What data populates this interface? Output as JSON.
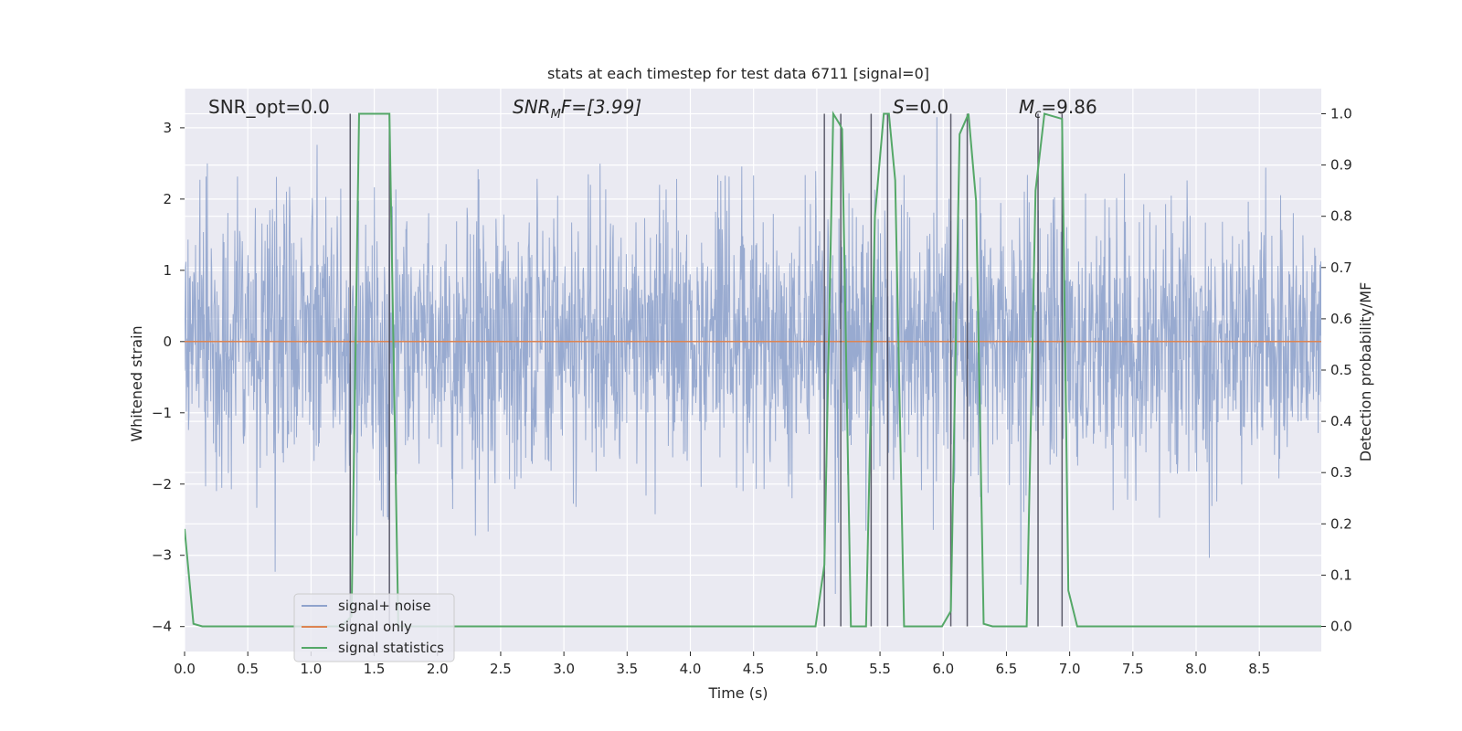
{
  "chart_data": {
    "type": "line",
    "title": "stats at each timestep for test data 6711 [signal=0]",
    "xlabel": "Time (s)",
    "ylabel_left": "Whitened strain",
    "ylabel_right": "Detection probability/MF",
    "xlim": [
      0.0,
      8.99
    ],
    "ylim_left": [
      -4.35,
      3.55
    ],
    "ylim_right": [
      -0.049,
      1.049
    ],
    "x_ticks": [
      "0.0",
      "0.5",
      "1.0",
      "1.5",
      "2.0",
      "2.5",
      "3.0",
      "3.5",
      "4.0",
      "4.5",
      "5.0",
      "5.5",
      "6.0",
      "6.5",
      "7.0",
      "7.5",
      "8.0",
      "8.5"
    ],
    "y_ticks_left": [
      "3",
      "2",
      "1",
      "0",
      "−1",
      "−2",
      "−3",
      "−4"
    ],
    "y_ticks_right": [
      "1.0",
      "0.9",
      "0.8",
      "0.7",
      "0.6",
      "0.5",
      "0.4",
      "0.3",
      "0.2",
      "0.1",
      "0.0"
    ],
    "grid": true,
    "annotations": {
      "snr_opt": "SNR_opt=0.0",
      "snr_mf_main": "SNR",
      "snr_mf_sub": "M",
      "snr_mf_rest": "F=[3.99]",
      "s_var": "S",
      "s_rest": "=0.0",
      "mc_main": "M",
      "mc_sub": "c",
      "mc_rest": "=9.86"
    },
    "legend": {
      "position": "lower-left",
      "entries": [
        "signal+ noise",
        "signal only",
        "signal statistics"
      ]
    },
    "colors": {
      "noise": "#8fa3cc",
      "signal": "#dd8452",
      "stats": "#55a868",
      "markers": "#444455",
      "background": "#eaeaf2",
      "grid": "#ffffff"
    },
    "series": [
      {
        "name": "signal+ noise",
        "description_axis": "left",
        "noise_sigma": 0.92,
        "approx_range": [
          -3.9,
          3.15
        ],
        "n_samples": 2600
      },
      {
        "name": "signal only",
        "axis": "left",
        "x": [
          0.0,
          8.99
        ],
        "y": [
          0.0,
          0.0
        ]
      },
      {
        "name": "signal statistics",
        "axis": "right",
        "x": [
          0.0,
          0.07,
          0.14,
          1.24,
          1.32,
          1.38,
          1.62,
          1.69,
          1.76,
          4.99,
          5.06,
          5.13,
          5.18,
          5.2,
          5.27,
          5.39,
          5.46,
          5.53,
          5.57,
          5.62,
          5.69,
          5.99,
          6.06,
          6.13,
          6.2,
          6.26,
          6.32,
          6.39,
          6.66,
          6.73,
          6.8,
          6.94,
          6.99,
          7.06,
          8.99
        ],
        "y": [
          0.19,
          0.005,
          0.0,
          0.0,
          0.02,
          1.0,
          1.0,
          0.0,
          0.0,
          0.0,
          0.12,
          1.0,
          0.98,
          0.97,
          0.0,
          0.0,
          0.8,
          1.0,
          1.0,
          0.87,
          0.0,
          0.0,
          0.03,
          0.96,
          1.0,
          0.83,
          0.005,
          0.0,
          0.0,
          0.85,
          1.0,
          0.99,
          0.07,
          0.0,
          0.0
        ]
      }
    ],
    "vertical_markers_x": [
      1.31,
      1.62,
      5.06,
      5.19,
      5.43,
      5.56,
      6.06,
      6.19,
      6.75,
      6.94
    ]
  }
}
